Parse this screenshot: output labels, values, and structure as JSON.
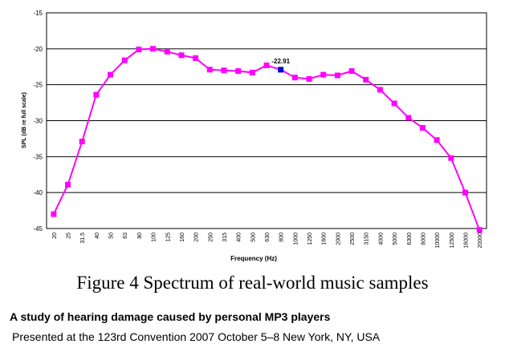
{
  "chart_data": {
    "type": "line",
    "x_label": "Frequency (Hz)",
    "y_label": "SPL (dB re full scale)",
    "categories": [
      "20",
      "25",
      "31.5",
      "40",
      "50",
      "63",
      "80",
      "100",
      "125",
      "160",
      "200",
      "250",
      "315",
      "400",
      "500",
      "630",
      "800",
      "1000",
      "1250",
      "1600",
      "2000",
      "2500",
      "3150",
      "4000",
      "5000",
      "6300",
      "8000",
      "10000",
      "12500",
      "16000",
      "20000"
    ],
    "series": [
      {
        "color": "#ff00ff",
        "values": [
          -43,
          -38.9,
          -32.9,
          -26.4,
          -23.6,
          -21.6,
          -20.1,
          -20,
          -20.4,
          -20.9,
          -21.3,
          -22.9,
          -23,
          -23.1,
          -23.3,
          -22.3,
          -22.91,
          -24,
          -24.2,
          -23.6,
          -23.7,
          -23.1,
          -24.3,
          -25.7,
          -27.6,
          -29.6,
          -31,
          -32.7,
          -35.2,
          -40,
          -45.2
        ],
        "highlight_index": 16,
        "highlight_color": "#0000cc"
      }
    ],
    "ylim": [
      -45,
      -15
    ],
    "yticks": [
      -15,
      -20,
      -25,
      -30,
      -35,
      -40,
      -45
    ],
    "grid": true
  },
  "caption": "Figure 4 Spectrum of real-world music samples",
  "paper_title": "A study of hearing damage caused by personal MP3 players",
  "venue": "Presented at the 123rd Convention 2007 October 5–8 New York, NY, USA"
}
